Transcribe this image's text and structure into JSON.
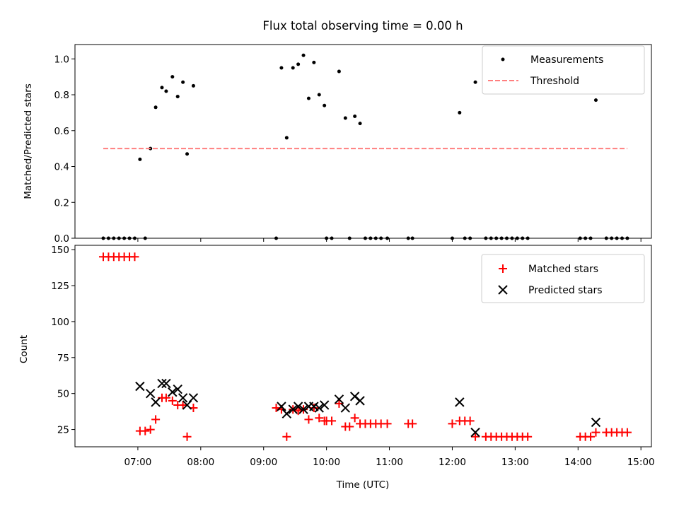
{
  "chart_data": {
    "title": "Flux total observing time = 0.00 h",
    "xlabel": "Time (UTC)",
    "x_tick_labels": [
      "07:00",
      "08:00",
      "09:00",
      "10:00",
      "11:00",
      "12:00",
      "13:00",
      "14:00",
      "15:00"
    ],
    "x_range": [
      "06:00",
      "15:10"
    ],
    "panels": [
      {
        "type": "scatter",
        "ylabel": "Matched/Predicted stars",
        "ylim": [
          0,
          1.08
        ],
        "yticks": [
          0.0,
          0.2,
          0.4,
          0.6,
          0.8,
          1.0
        ],
        "y_tick_labels": [
          "0.0",
          "0.2",
          "0.4",
          "0.6",
          "0.8",
          "1.0"
        ],
        "grid": false,
        "legend": {
          "placement": "upper right",
          "entries": [
            "Measurements",
            "Threshold"
          ]
        },
        "series": [
          {
            "name": "Measurements",
            "kind": "scatter",
            "marker": "dot",
            "color": "#000000",
            "points": [
              [
                "06:27",
                0.0
              ],
              [
                "06:32",
                0.0
              ],
              [
                "06:37",
                0.0
              ],
              [
                "06:42",
                0.0
              ],
              [
                "06:47",
                0.0
              ],
              [
                "06:52",
                0.0
              ],
              [
                "06:57",
                0.0
              ],
              [
                "07:02",
                0.44
              ],
              [
                "07:07",
                0.0
              ],
              [
                "07:12",
                0.5
              ],
              [
                "07:17",
                0.73
              ],
              [
                "07:23",
                0.84
              ],
              [
                "07:27",
                0.82
              ],
              [
                "07:33",
                0.9
              ],
              [
                "07:38",
                0.79
              ],
              [
                "07:43",
                0.87
              ],
              [
                "07:47",
                0.47
              ],
              [
                "07:53",
                0.85
              ],
              [
                "09:12",
                0.0
              ],
              [
                "09:17",
                0.95
              ],
              [
                "09:22",
                0.56
              ],
              [
                "09:28",
                0.95
              ],
              [
                "09:33",
                0.97
              ],
              [
                "09:38",
                1.02
              ],
              [
                "09:43",
                0.78
              ],
              [
                "09:48",
                0.98
              ],
              [
                "09:53",
                0.8
              ],
              [
                "09:58",
                0.74
              ],
              [
                "10:00",
                0.0
              ],
              [
                "10:05",
                0.0
              ],
              [
                "10:12",
                0.93
              ],
              [
                "10:18",
                0.67
              ],
              [
                "10:22",
                0.0
              ],
              [
                "10:27",
                0.68
              ],
              [
                "10:32",
                0.64
              ],
              [
                "10:37",
                0.0
              ],
              [
                "10:42",
                0.0
              ],
              [
                "10:47",
                0.0
              ],
              [
                "10:52",
                0.0
              ],
              [
                "10:58",
                0.0
              ],
              [
                "11:18",
                0.0
              ],
              [
                "11:22",
                0.0
              ],
              [
                "12:00",
                0.0
              ],
              [
                "12:07",
                0.7
              ],
              [
                "12:12",
                0.0
              ],
              [
                "12:17",
                0.0
              ],
              [
                "12:22",
                0.87
              ],
              [
                "12:32",
                0.0
              ],
              [
                "12:37",
                0.0
              ],
              [
                "12:42",
                0.0
              ],
              [
                "12:47",
                0.0
              ],
              [
                "12:52",
                0.0
              ],
              [
                "12:57",
                0.0
              ],
              [
                "13:02",
                0.0
              ],
              [
                "13:07",
                0.0
              ],
              [
                "13:12",
                0.0
              ],
              [
                "14:02",
                0.0
              ],
              [
                "14:07",
                0.0
              ],
              [
                "14:12",
                0.0
              ],
              [
                "14:17",
                0.77
              ],
              [
                "14:27",
                0.0
              ],
              [
                "14:32",
                0.0
              ],
              [
                "14:37",
                0.0
              ],
              [
                "14:42",
                0.0
              ],
              [
                "14:47",
                0.0
              ]
            ]
          },
          {
            "name": "Threshold",
            "kind": "line",
            "style": "dashed",
            "color": "#ff7f7f",
            "points": [
              [
                "06:27",
                0.5
              ],
              [
                "14:47",
                0.5
              ]
            ]
          }
        ]
      },
      {
        "type": "scatter",
        "ylabel": "Count",
        "ylim": [
          13,
          153
        ],
        "yticks": [
          25,
          50,
          75,
          100,
          125,
          150
        ],
        "y_tick_labels": [
          "25",
          "50",
          "75",
          "100",
          "125",
          "150"
        ],
        "grid": false,
        "legend": {
          "placement": "upper right",
          "entries": [
            "Matched stars",
            "Predicted stars"
          ]
        },
        "series": [
          {
            "name": "Matched stars",
            "kind": "scatter",
            "marker": "plus",
            "color": "#ff0000",
            "points": [
              [
                "06:27",
                145
              ],
              [
                "06:32",
                145
              ],
              [
                "06:37",
                145
              ],
              [
                "06:42",
                145
              ],
              [
                "06:47",
                145
              ],
              [
                "06:52",
                145
              ],
              [
                "06:57",
                145
              ],
              [
                "07:02",
                24
              ],
              [
                "07:07",
                24
              ],
              [
                "07:12",
                25
              ],
              [
                "07:17",
                32
              ],
              [
                "07:23",
                47
              ],
              [
                "07:27",
                47
              ],
              [
                "07:33",
                45
              ],
              [
                "07:38",
                42
              ],
              [
                "07:43",
                42
              ],
              [
                "07:47",
                20
              ],
              [
                "07:53",
                40
              ],
              [
                "09:12",
                40
              ],
              [
                "09:17",
                39
              ],
              [
                "09:22",
                20
              ],
              [
                "09:28",
                39
              ],
              [
                "09:33",
                38
              ],
              [
                "09:38",
                39
              ],
              [
                "09:43",
                32
              ],
              [
                "09:48",
                40
              ],
              [
                "09:53",
                33
              ],
              [
                "09:58",
                31
              ],
              [
                "10:00",
                31
              ],
              [
                "10:05",
                31
              ],
              [
                "10:12",
                43
              ],
              [
                "10:18",
                27
              ],
              [
                "10:22",
                27
              ],
              [
                "10:27",
                33
              ],
              [
                "10:32",
                29
              ],
              [
                "10:37",
                29
              ],
              [
                "10:42",
                29
              ],
              [
                "10:47",
                29
              ],
              [
                "10:52",
                29
              ],
              [
                "10:58",
                29
              ],
              [
                "11:18",
                29
              ],
              [
                "11:22",
                29
              ],
              [
                "12:00",
                29
              ],
              [
                "12:07",
                31
              ],
              [
                "12:12",
                31
              ],
              [
                "12:17",
                31
              ],
              [
                "12:22",
                20
              ],
              [
                "12:32",
                20
              ],
              [
                "12:37",
                20
              ],
              [
                "12:42",
                20
              ],
              [
                "12:47",
                20
              ],
              [
                "12:52",
                20
              ],
              [
                "12:57",
                20
              ],
              [
                "13:02",
                20
              ],
              [
                "13:07",
                20
              ],
              [
                "13:12",
                20
              ],
              [
                "14:02",
                20
              ],
              [
                "14:07",
                20
              ],
              [
                "14:12",
                20
              ],
              [
                "14:17",
                23
              ],
              [
                "14:27",
                23
              ],
              [
                "14:32",
                23
              ],
              [
                "14:37",
                23
              ],
              [
                "14:42",
                23
              ],
              [
                "14:47",
                23
              ]
            ]
          },
          {
            "name": "Predicted stars",
            "kind": "scatter",
            "marker": "x",
            "color": "#000000",
            "points": [
              [
                "07:02",
                55
              ],
              [
                "07:12",
                50
              ],
              [
                "07:17",
                44
              ],
              [
                "07:23",
                57
              ],
              [
                "07:27",
                57
              ],
              [
                "07:33",
                51
              ],
              [
                "07:38",
                53
              ],
              [
                "07:43",
                47
              ],
              [
                "07:47",
                42
              ],
              [
                "07:53",
                47
              ],
              [
                "09:17",
                41
              ],
              [
                "09:22",
                36
              ],
              [
                "09:28",
                39
              ],
              [
                "09:33",
                41
              ],
              [
                "09:38",
                39
              ],
              [
                "09:43",
                41
              ],
              [
                "09:48",
                41
              ],
              [
                "09:53",
                40
              ],
              [
                "09:58",
                42
              ],
              [
                "10:12",
                46
              ],
              [
                "10:18",
                40
              ],
              [
                "10:27",
                48
              ],
              [
                "10:32",
                45
              ],
              [
                "12:07",
                44
              ],
              [
                "12:22",
                23
              ],
              [
                "14:17",
                30
              ]
            ]
          }
        ]
      }
    ]
  }
}
